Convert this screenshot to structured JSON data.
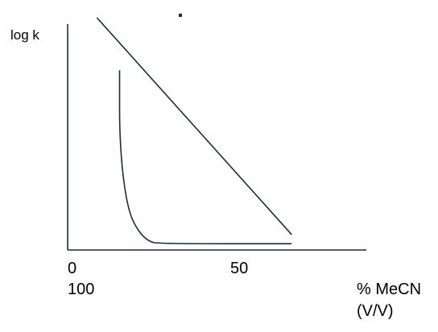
{
  "chart_data": {
    "type": "line",
    "title": "",
    "ylabel": "log k",
    "xlabel_line1": "% MeCN",
    "xlabel_line2": "(V/V)",
    "x_ticks": [
      "0",
      "50"
    ],
    "x_tick_secondary": [
      "100"
    ],
    "xlim": [
      0,
      92
    ],
    "ylim": [
      0,
      1
    ],
    "grid": false,
    "legend": "none",
    "series": [
      {
        "points": [
          [
            9,
            1.0
          ],
          [
            69,
            0.05
          ]
        ]
      },
      {
        "points": [
          [
            16,
            0.77
          ],
          [
            16,
            0.68
          ],
          [
            16,
            0.5
          ],
          [
            17,
            0.3
          ],
          [
            19,
            0.14
          ],
          [
            22,
            0.06
          ],
          [
            25,
            0.02
          ],
          [
            28,
            0.01
          ],
          [
            69,
            0.01
          ]
        ]
      }
    ],
    "color": "#1f2a44"
  }
}
